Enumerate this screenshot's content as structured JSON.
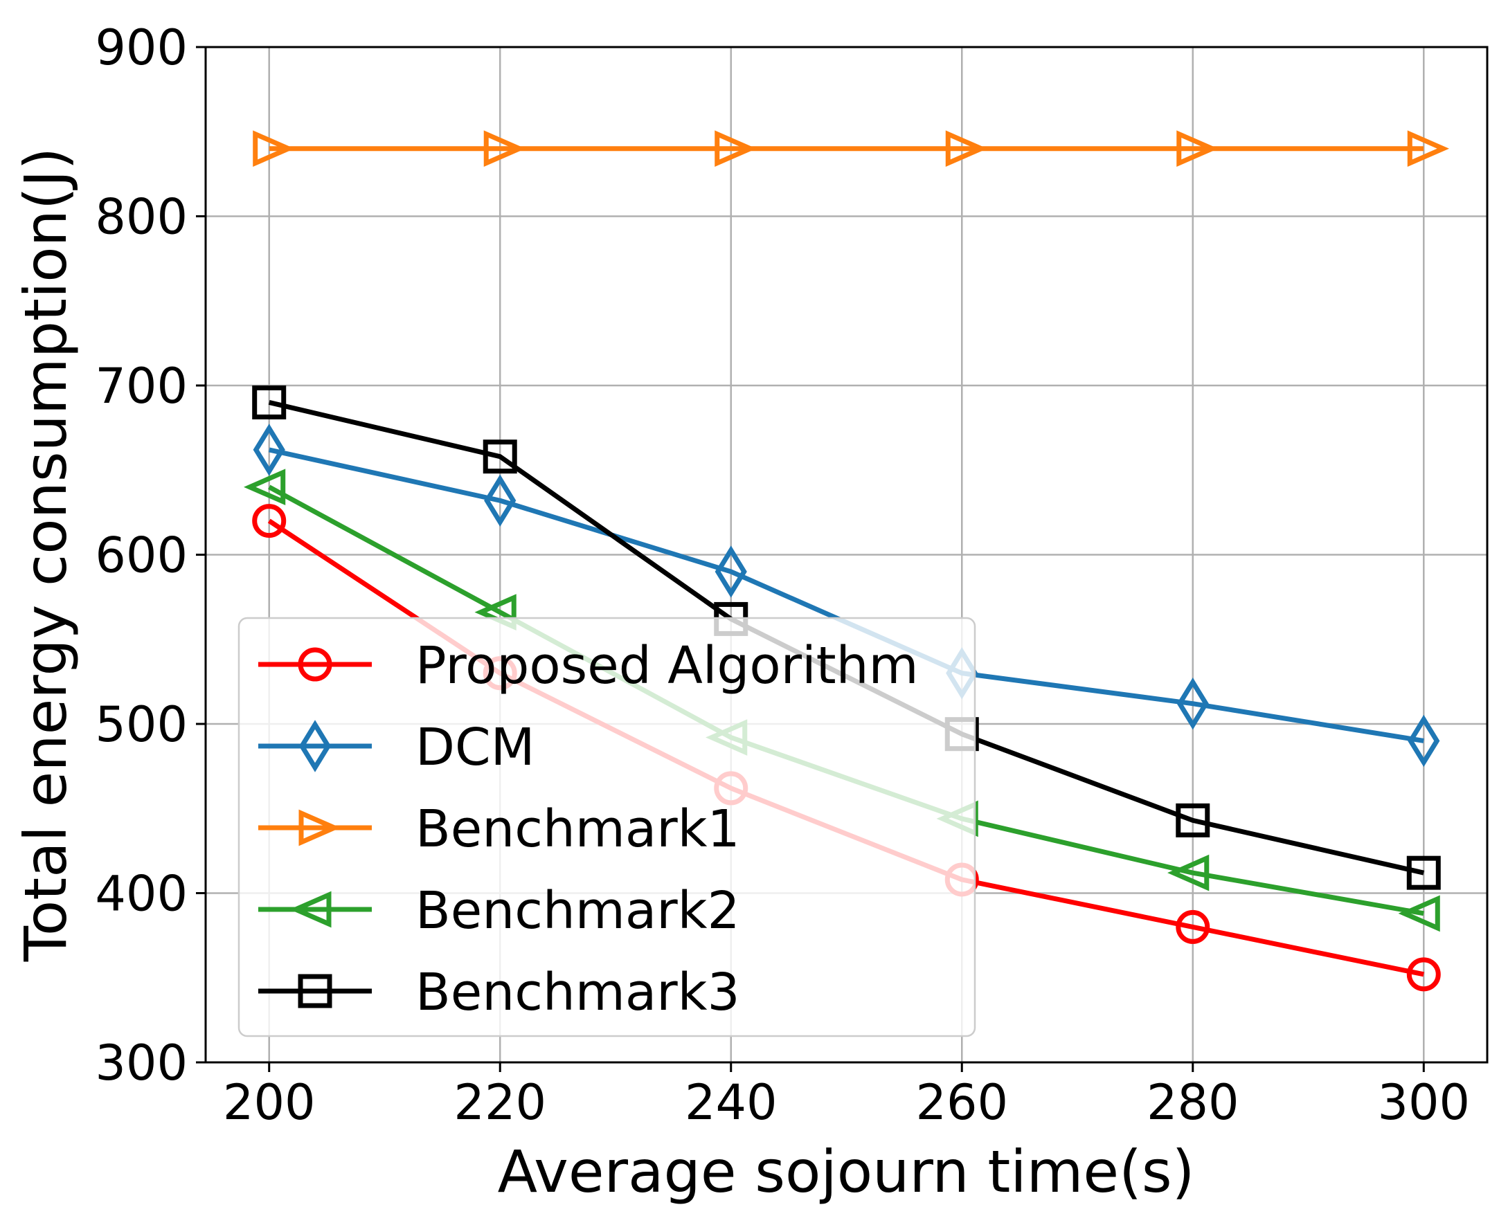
{
  "chart_data": {
    "type": "line",
    "title": "",
    "xlabel": "Average sojourn time(s)",
    "ylabel": "Total energy consumption(J)",
    "x": [
      200,
      220,
      240,
      260,
      280,
      300
    ],
    "xticks": [
      200,
      220,
      240,
      260,
      280,
      300
    ],
    "yticks": [
      300,
      400,
      500,
      600,
      700,
      800,
      900
    ],
    "xlim": [
      194.5,
      305.5
    ],
    "ylim": [
      300,
      900
    ],
    "grid": true,
    "legend_position": "lower-left",
    "series": [
      {
        "name": "Proposed Algorithm",
        "color": "#ff0000",
        "marker": "circle",
        "values": [
          620,
          530,
          462,
          408,
          380,
          352
        ]
      },
      {
        "name": "DCM",
        "color": "#1f77b4",
        "marker": "thin-diamond",
        "values": [
          662,
          632,
          590,
          530,
          512,
          490
        ]
      },
      {
        "name": "Benchmark1",
        "color": "#ff7f0e",
        "marker": "triangle-right",
        "values": [
          840,
          840,
          840,
          840,
          840,
          840
        ]
      },
      {
        "name": "Benchmark2",
        "color": "#2ca02c",
        "marker": "triangle-left",
        "values": [
          640,
          566,
          492,
          444,
          412,
          388
        ]
      },
      {
        "name": "Benchmark3",
        "color": "#000000",
        "marker": "square",
        "values": [
          690,
          658,
          562,
          494,
          443,
          412
        ]
      }
    ]
  }
}
